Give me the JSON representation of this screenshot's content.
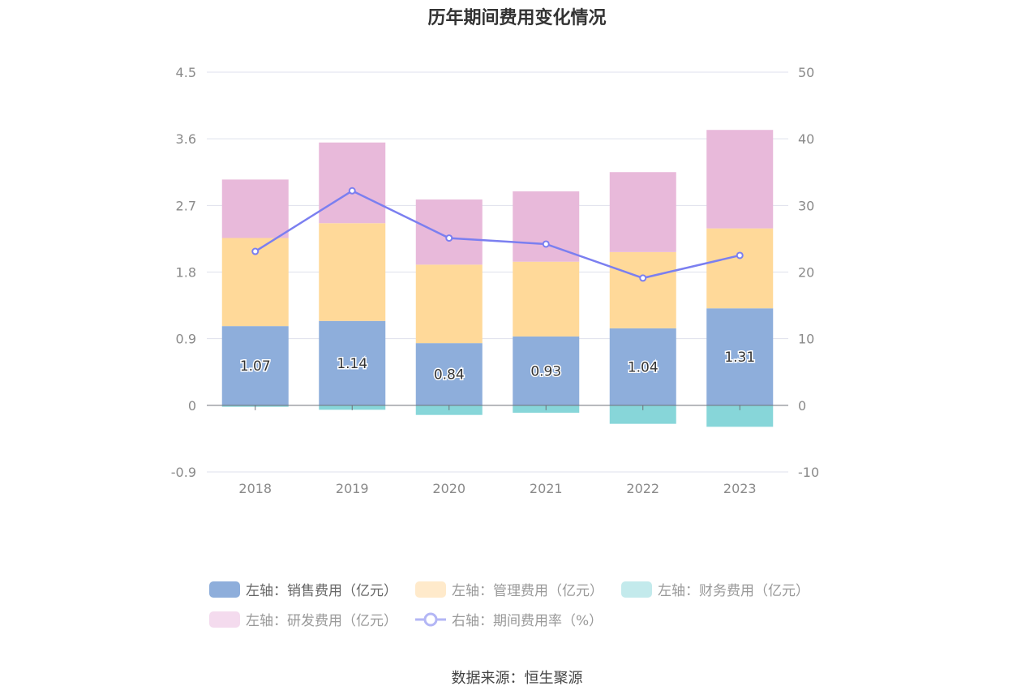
{
  "title": "历年期间费用变化情况",
  "source": "数据来源：恒生聚源",
  "colors": {
    "sales": "#8eaedb",
    "management": "#ffd999",
    "finance": "#87d6d9",
    "rnd": "#e8b9da",
    "rate": "#7b7ff0",
    "grid": "#dfe1ec",
    "axis_text": "#8a8a8a"
  },
  "legend": [
    {
      "label": "左轴：销售费用（亿元）",
      "color": "#8eaedb",
      "type": "bar"
    },
    {
      "label": "左轴：管理费用（亿元）",
      "color": "#ffeacb",
      "type": "bar"
    },
    {
      "label": "左轴：财务费用（亿元）",
      "color": "#c3eaec",
      "type": "bar"
    },
    {
      "label": "左轴：研发费用（亿元）",
      "color": "#f4dbee",
      "type": "bar"
    },
    {
      "label": "右轴：期间费用率（%）",
      "color": "#b3b6f5",
      "type": "line"
    }
  ],
  "chart_data": {
    "type": "bar",
    "stacked": true,
    "categories": [
      "2018",
      "2019",
      "2020",
      "2021",
      "2022",
      "2023"
    ],
    "y_left": {
      "ticks": [
        "4.5",
        "3.6",
        "2.7",
        "1.8",
        "0.9",
        "0",
        "-0.9"
      ],
      "ylim": [
        -0.9,
        4.5
      ]
    },
    "y_right": {
      "ticks": [
        "50",
        "40",
        "30",
        "20",
        "10",
        "0",
        "-10"
      ],
      "ylim": [
        -10,
        50
      ]
    },
    "series": [
      {
        "name": "左轴：销售费用（亿元）",
        "axis": "left",
        "type": "bar",
        "values": [
          1.07,
          1.14,
          0.84,
          0.93,
          1.04,
          1.31
        ],
        "labels": [
          "1.07",
          "1.14",
          "0.84",
          "0.93",
          "1.04",
          "1.31"
        ]
      },
      {
        "name": "左轴：管理费用（亿元）",
        "axis": "left",
        "type": "bar",
        "values": [
          1.19,
          1.32,
          1.06,
          1.01,
          1.03,
          1.08
        ]
      },
      {
        "name": "左轴：财务费用（亿元）",
        "axis": "left",
        "type": "bar",
        "values": [
          -0.02,
          -0.06,
          -0.13,
          -0.1,
          -0.25,
          -0.29
        ]
      },
      {
        "name": "左轴：研发费用（亿元）",
        "axis": "left",
        "type": "bar",
        "values": [
          0.79,
          1.09,
          0.88,
          0.95,
          1.08,
          1.33
        ]
      },
      {
        "name": "右轴：期间费用率（%）",
        "axis": "right",
        "type": "line",
        "values": [
          23.1,
          32.2,
          25.1,
          24.2,
          19.1,
          22.5
        ]
      }
    ],
    "grid": true,
    "legend_position": "bottom"
  }
}
